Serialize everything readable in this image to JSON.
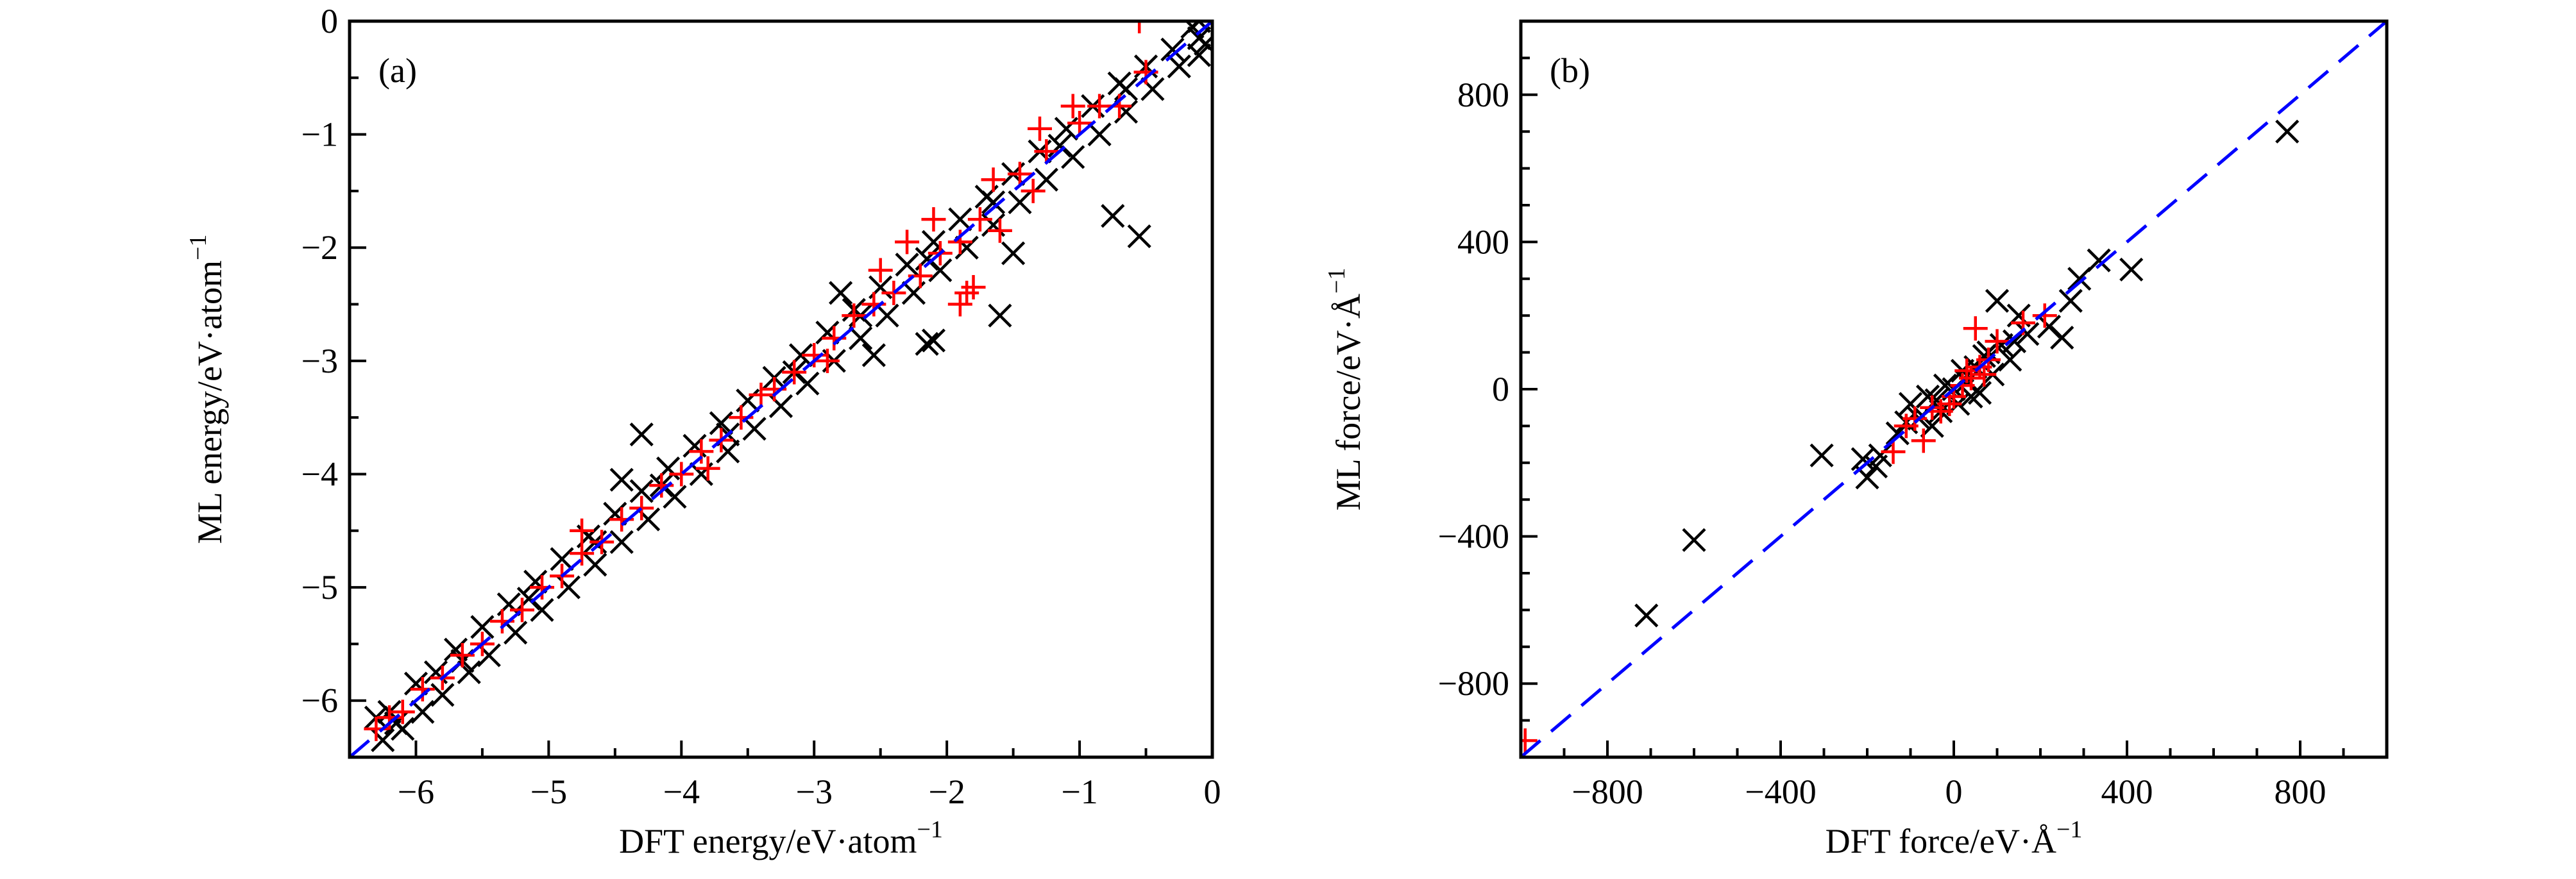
{
  "chart_data": [
    {
      "type": "scatter",
      "panel_label": "(a)",
      "xlabel": "DFT energy/eV·atom",
      "xlabel_sup": "−1",
      "ylabel": "ML energy/eV·atom",
      "ylabel_sup": "−1",
      "xlim": [
        -6.5,
        0
      ],
      "ylim": [
        -6.5,
        0
      ],
      "xticks": [
        -6,
        -5,
        -4,
        -3,
        -2,
        -1,
        0
      ],
      "yticks": [
        -6,
        -5,
        -4,
        -3,
        -2,
        -1,
        0
      ],
      "xtick_labels": [
        "−6",
        "−5",
        "−4",
        "−3",
        "−2",
        "−1",
        "0"
      ],
      "ytick_labels": [
        "−6",
        "−5",
        "−4",
        "−3",
        "−2",
        "−1",
        "0"
      ],
      "minor_step": 0.5,
      "grid": false,
      "reference_line": {
        "type": "y=x",
        "style": "dashed",
        "color": "#0000ff"
      },
      "series": [
        {
          "marker": "x",
          "color": "#000000",
          "points": [
            [
              -6.3,
              -6.15
            ],
            [
              -6.25,
              -6.35
            ],
            [
              -6.2,
              -6.1
            ],
            [
              -6.1,
              -6.25
            ],
            [
              -6.0,
              -5.85
            ],
            [
              -5.95,
              -6.1
            ],
            [
              -5.85,
              -5.75
            ],
            [
              -5.8,
              -5.95
            ],
            [
              -5.7,
              -5.55
            ],
            [
              -5.6,
              -5.75
            ],
            [
              -5.5,
              -5.35
            ],
            [
              -5.45,
              -5.6
            ],
            [
              -5.3,
              -5.15
            ],
            [
              -5.25,
              -5.4
            ],
            [
              -5.1,
              -4.95
            ],
            [
              -5.05,
              -5.2
            ],
            [
              -4.9,
              -4.75
            ],
            [
              -4.85,
              -5.0
            ],
            [
              -4.7,
              -4.55
            ],
            [
              -4.65,
              -4.8
            ],
            [
              -4.5,
              -4.35
            ],
            [
              -4.45,
              -4.6
            ],
            [
              -4.3,
              -4.15
            ],
            [
              -4.25,
              -4.4
            ],
            [
              -4.1,
              -3.95
            ],
            [
              -4.05,
              -4.2
            ],
            [
              -3.9,
              -3.75
            ],
            [
              -3.85,
              -4.0
            ],
            [
              -3.7,
              -3.55
            ],
            [
              -3.65,
              -3.8
            ],
            [
              -3.5,
              -3.35
            ],
            [
              -3.45,
              -3.6
            ],
            [
              -3.3,
              -3.15
            ],
            [
              -3.25,
              -3.4
            ],
            [
              -3.1,
              -2.95
            ],
            [
              -3.05,
              -3.2
            ],
            [
              -2.9,
              -2.75
            ],
            [
              -2.85,
              -3.0
            ],
            [
              -2.7,
              -2.55
            ],
            [
              -2.65,
              -2.8
            ],
            [
              -2.5,
              -2.35
            ],
            [
              -2.45,
              -2.6
            ],
            [
              -2.3,
              -2.15
            ],
            [
              -2.25,
              -2.4
            ],
            [
              -2.1,
              -1.95
            ],
            [
              -2.05,
              -2.2
            ],
            [
              -1.9,
              -1.75
            ],
            [
              -1.85,
              -2.0
            ],
            [
              -1.7,
              -1.55
            ],
            [
              -1.65,
              -1.8
            ],
            [
              -1.5,
              -1.35
            ],
            [
              -1.45,
              -1.6
            ],
            [
              -1.3,
              -1.15
            ],
            [
              -1.25,
              -1.4
            ],
            [
              -1.1,
              -0.95
            ],
            [
              -1.05,
              -1.2
            ],
            [
              -0.9,
              -0.75
            ],
            [
              -0.85,
              -1.0
            ],
            [
              -0.7,
              -0.55
            ],
            [
              -0.65,
              -0.8
            ],
            [
              -0.5,
              -0.4
            ],
            [
              -0.45,
              -0.6
            ],
            [
              -0.3,
              -0.25
            ],
            [
              -0.25,
              -0.4
            ],
            [
              -0.15,
              -0.05
            ],
            [
              -0.1,
              -0.3
            ],
            [
              -6.15,
              -6.2
            ],
            [
              -5.65,
              -5.65
            ],
            [
              -5.15,
              -5.1
            ],
            [
              -4.65,
              -4.6
            ],
            [
              -4.15,
              -4.1
            ],
            [
              -3.65,
              -3.65
            ],
            [
              -3.15,
              -3.1
            ],
            [
              -2.65,
              -2.6
            ],
            [
              -2.15,
              -2.1
            ],
            [
              -1.65,
              -1.6
            ],
            [
              -1.15,
              -1.1
            ],
            [
              -0.65,
              -0.6
            ],
            [
              -0.75,
              -1.72
            ],
            [
              -0.55,
              -1.9
            ],
            [
              -1.5,
              -2.05
            ],
            [
              -1.6,
              -2.6
            ],
            [
              -2.15,
              -2.85
            ],
            [
              -2.1,
              -2.82
            ],
            [
              -2.55,
              -2.95
            ],
            [
              -4.3,
              -3.65
            ],
            [
              -4.45,
              -4.05
            ],
            [
              -2.8,
              -2.4
            ],
            [
              -0.1,
              -0.15
            ],
            [
              -0.05,
              -0.2
            ],
            [
              -0.1,
              0.0
            ]
          ]
        },
        {
          "marker": "+",
          "color": "#ff0000",
          "points": [
            [
              -6.3,
              -6.25
            ],
            [
              -6.2,
              -6.15
            ],
            [
              -6.1,
              -6.1
            ],
            [
              -5.95,
              -5.9
            ],
            [
              -5.8,
              -5.8
            ],
            [
              -5.65,
              -5.6
            ],
            [
              -5.5,
              -5.5
            ],
            [
              -5.35,
              -5.3
            ],
            [
              -5.2,
              -5.2
            ],
            [
              -5.05,
              -5.0
            ],
            [
              -4.9,
              -4.9
            ],
            [
              -4.75,
              -4.7
            ],
            [
              -4.75,
              -4.5
            ],
            [
              -4.6,
              -4.6
            ],
            [
              -4.45,
              -4.4
            ],
            [
              -4.3,
              -4.3
            ],
            [
              -4.15,
              -4.1
            ],
            [
              -4.0,
              -4.0
            ],
            [
              -3.85,
              -3.8
            ],
            [
              -3.8,
              -3.95
            ],
            [
              -3.7,
              -3.7
            ],
            [
              -3.55,
              -3.5
            ],
            [
              -3.4,
              -3.3
            ],
            [
              -3.3,
              -3.25
            ],
            [
              -3.15,
              -3.1
            ],
            [
              -3.0,
              -2.95
            ],
            [
              -2.9,
              -3.0
            ],
            [
              -2.85,
              -2.8
            ],
            [
              -2.7,
              -2.6
            ],
            [
              -2.55,
              -2.5
            ],
            [
              -2.5,
              -2.2
            ],
            [
              -2.4,
              -2.4
            ],
            [
              -2.3,
              -1.95
            ],
            [
              -2.2,
              -2.25
            ],
            [
              -2.1,
              -1.75
            ],
            [
              -2.05,
              -2.05
            ],
            [
              -1.9,
              -2.5
            ],
            [
              -1.85,
              -2.4
            ],
            [
              -1.8,
              -2.35
            ],
            [
              -1.9,
              -1.95
            ],
            [
              -1.75,
              -1.75
            ],
            [
              -1.65,
              -1.4
            ],
            [
              -1.6,
              -1.85
            ],
            [
              -1.45,
              -1.35
            ],
            [
              -1.35,
              -1.5
            ],
            [
              -1.3,
              -0.95
            ],
            [
              -1.25,
              -1.15
            ],
            [
              -1.05,
              -0.75
            ],
            [
              -1.0,
              -0.9
            ],
            [
              -0.85,
              -0.75
            ],
            [
              -0.7,
              -0.75
            ],
            [
              -0.5,
              -0.45
            ],
            [
              -0.55,
              0.0
            ]
          ]
        }
      ]
    },
    {
      "type": "scatter",
      "panel_label": "(b)",
      "xlabel": "DFT force/eV·Å",
      "xlabel_sup": "−1",
      "ylabel": "ML force/eV·Å",
      "ylabel_sup": "−1",
      "xlim": [
        -1000,
        1000
      ],
      "ylim": [
        -1000,
        1000
      ],
      "xticks": [
        -800,
        -400,
        0,
        400,
        800
      ],
      "yticks": [
        -800,
        -400,
        0,
        400,
        800
      ],
      "xtick_labels": [
        "−800",
        "−400",
        "0",
        "400",
        "800"
      ],
      "ytick_labels": [
        "−800",
        "−400",
        "0",
        "400",
        "800"
      ],
      "minor_step": 100,
      "grid": false,
      "reference_line": {
        "type": "y=x",
        "style": "dashed",
        "color": "#0000ff"
      },
      "series": [
        {
          "marker": "x",
          "color": "#000000",
          "points": [
            [
              770,
              700
            ],
            [
              -710,
              -615
            ],
            [
              -600,
              -410
            ],
            [
              -305,
              -180
            ],
            [
              -210,
              -190
            ],
            [
              -200,
              -240
            ],
            [
              -180,
              -210
            ],
            [
              -170,
              -180
            ],
            [
              410,
              325
            ],
            [
              335,
              350
            ],
            [
              290,
              300
            ],
            [
              270,
              240
            ],
            [
              250,
              140
            ],
            [
              100,
              240
            ],
            [
              150,
              200
            ],
            [
              220,
              170
            ],
            [
              -130,
              -120
            ],
            [
              -100,
              -40
            ],
            [
              -60,
              -20
            ],
            [
              0,
              0
            ],
            [
              30,
              20
            ],
            [
              50,
              60
            ],
            [
              80,
              100
            ],
            [
              110,
              120
            ],
            [
              130,
              80
            ],
            [
              60,
              -10
            ],
            [
              -30,
              -60
            ],
            [
              -80,
              -80
            ],
            [
              -50,
              -100
            ],
            [
              20,
              50
            ],
            [
              -20,
              10
            ],
            [
              90,
              40
            ],
            [
              140,
              130
            ],
            [
              170,
              150
            ],
            [
              -110,
              -90
            ],
            [
              40,
              -20
            ],
            [
              10,
              -40
            ],
            [
              -40,
              -30
            ],
            [
              70,
              90
            ]
          ]
        },
        {
          "marker": "+",
          "color": "#ff0000",
          "points": [
            [
              -990,
              -955
            ],
            [
              50,
              165
            ],
            [
              100,
              130
            ],
            [
              160,
              180
            ],
            [
              210,
              200
            ],
            [
              -140,
              -170
            ],
            [
              -90,
              -80
            ],
            [
              -70,
              -140
            ],
            [
              -110,
              -100
            ],
            [
              -30,
              -60
            ],
            [
              0,
              -20
            ],
            [
              20,
              10
            ],
            [
              40,
              30
            ],
            [
              60,
              60
            ],
            [
              -10,
              -40
            ],
            [
              30,
              50
            ],
            [
              -50,
              -50
            ],
            [
              70,
              40
            ],
            [
              80,
              80
            ]
          ]
        }
      ]
    }
  ]
}
